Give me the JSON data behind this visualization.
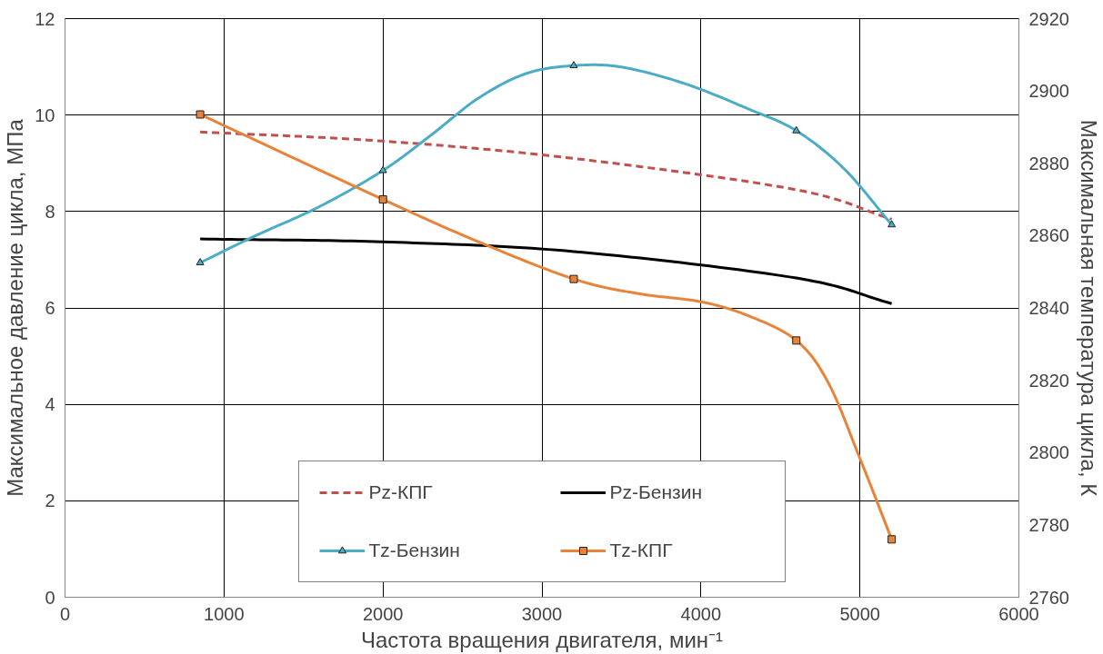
{
  "chart_data": {
    "type": "line",
    "x": [
      850,
      2000,
      3200,
      4600,
      5200
    ],
    "xlabel": "Частота вращения двигателя, мин⁻¹",
    "ylabel": "Максимальное давление цикла, МПа",
    "y2label": "Максимальная температура цикла, К",
    "xlim": [
      0,
      6000
    ],
    "xticks": [
      0,
      1000,
      2000,
      3000,
      4000,
      5000,
      6000
    ],
    "ylim": [
      0,
      12
    ],
    "yticks": [
      0,
      2,
      4,
      6,
      8,
      10,
      12
    ],
    "y2lim": [
      2760,
      2920
    ],
    "y2ticks": [
      2760,
      2780,
      2800,
      2820,
      2840,
      2860,
      2880,
      2900,
      2920
    ],
    "grid": true,
    "legend": "bottom",
    "series": [
      {
        "name": "Pz-КПГ",
        "color": "#c0504d",
        "values": [
          9.65,
          9.46,
          9.1,
          8.45,
          7.84
        ],
        "line_style": "dashed",
        "marker": "none"
      },
      {
        "name": "Pz-Бензин",
        "color": "#000000",
        "values": [
          7.43,
          7.37,
          7.17,
          6.62,
          6.09
        ],
        "line_style": "solid",
        "marker": "none"
      },
      {
        "name": "Tz-Бензин",
        "color": "#4bacc6",
        "x": [
          850,
          1200,
          1600,
          2000,
          2300,
          2600,
          2900,
          3200,
          3500,
          3900,
          4300,
          4600,
          4900,
          5200
        ],
        "values": [
          2852.5,
          2860,
          2868,
          2878,
          2887.7,
          2898,
          2904.8,
          2907,
          2906.6,
          2902,
          2895,
          2889,
          2878.5,
          2863
        ],
        "line_style": "solid",
        "marker": "none",
        "axis": "y2"
      },
      {
        "name": "Tz-КПГ",
        "color": "#e8833a",
        "x": [
          850,
          2000,
          2600,
          3200,
          3600,
          4000,
          4300,
          4600,
          4800,
          5000,
          5200
        ],
        "values": [
          2893.5,
          2870,
          2858.3,
          2848,
          2844,
          2841.7,
          2837.8,
          2831,
          2819.4,
          2798.4,
          2776
        ],
        "line_style": "solid",
        "marker": "none",
        "axis": "y2"
      },
      {
        "type": "scatter",
        "color": "#4bacc6",
        "values": [
          2852.5,
          2878,
          2907,
          2889,
          2863
        ],
        "marker": "triangle",
        "axis": "y2"
      },
      {
        "type": "scatter",
        "color": "#e8833a",
        "values": [
          2893.5,
          2870,
          2848,
          2831,
          2776
        ],
        "marker": "square",
        "axis": "y2"
      }
    ]
  }
}
